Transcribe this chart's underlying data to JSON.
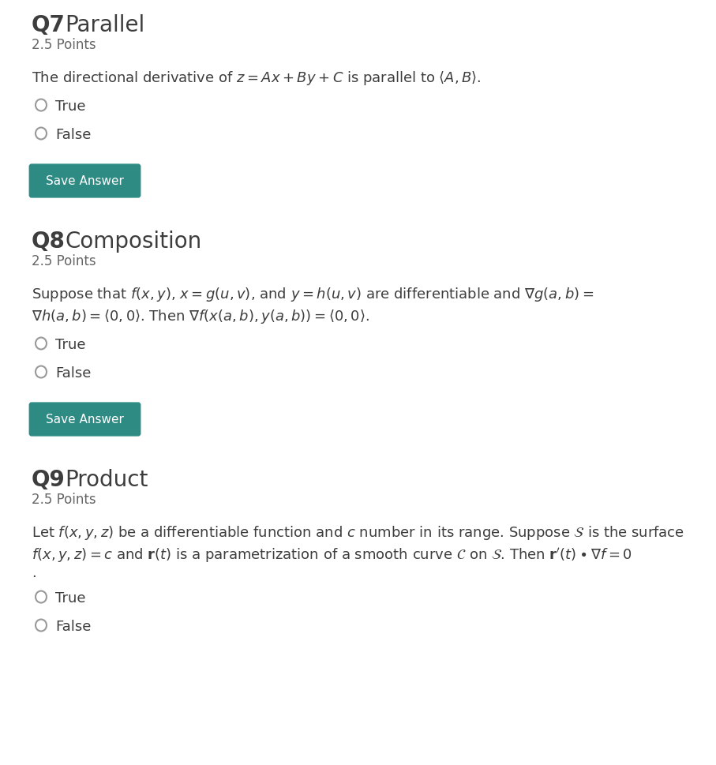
{
  "bg_outer": "#e8eaed",
  "bg_inner": "#ffffff",
  "text_color": "#3d3d3d",
  "teal_color": "#2e8b84",
  "gray_color": "#666666",
  "radio_color": "#999999",
  "button_bg": "#2e8b84",
  "button_fg": "#ffffff",
  "sections": [
    {
      "number": "Q7",
      "title": "Parallel",
      "points": "2.5 Points",
      "lines": [
        "The directional derivative of $z = Ax + By + C$ is parallel to $\\langle A, B\\rangle$."
      ],
      "has_button": true
    },
    {
      "number": "Q8",
      "title": "Composition",
      "points": "2.5 Points",
      "lines": [
        "Suppose that $f(x,y)$, $x = g(u,v)$, and $y = h(u,v)$ are differentiable and $\\nabla g(a,b) =$",
        "$\\nabla h(a,b) = \\langle 0,0\\rangle$. Then $\\nabla f(x(a,b), y(a,b)) = \\langle 0,0\\rangle$."
      ],
      "has_button": true
    },
    {
      "number": "Q9",
      "title": "Product",
      "points": "2.5 Points",
      "lines": [
        "Let $f(x,y,z)$ be a differentiable function and $c$ number in its range. Suppose $\\mathcal{S}$ is the surface",
        "$f(x,y,z) = c$ and $\\mathbf{r}(t)$ is a parametrization of a smooth curve $\\mathcal{C}$ on $\\mathcal{S}$. Then $\\mathbf{r}'(t) \\bullet \\nabla f = 0$",
        "."
      ],
      "has_button": false
    }
  ]
}
